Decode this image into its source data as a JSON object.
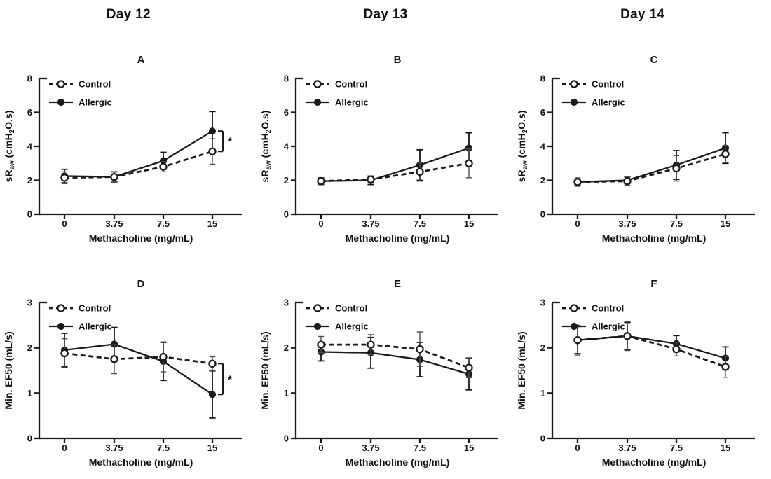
{
  "page": {
    "background": "#ffffff",
    "colors": {
      "foreground": "#111111",
      "axis": "#1a1a1a",
      "error_bar_control": "#4f4f4f",
      "error_bar_allergic": "#161616",
      "marker_open_fill": "#ffffff"
    }
  },
  "headers": [
    {
      "label": "Day 12"
    },
    {
      "label": "Day 13"
    },
    {
      "label": "Day 14"
    }
  ],
  "chart_data": [
    {
      "id": "A",
      "type": "line",
      "day": "Day 12",
      "title": "A",
      "xlabel": "Methacholine (mg/mL)",
      "ylabel": "sRaw (cmH2O.s)",
      "ylabel_rich": [
        {
          "text": "sR"
        },
        {
          "text": "aw",
          "sub": true
        },
        {
          "text": " (cmH"
        },
        {
          "text": "2",
          "sub": true
        },
        {
          "text": "O.s)"
        }
      ],
      "ylim": [
        0,
        8
      ],
      "yticks": [
        0,
        2,
        4,
        6,
        8
      ],
      "categories": [
        "0",
        "3.75",
        "7.5",
        "15"
      ],
      "x_values": [
        0,
        3.75,
        7.5,
        15
      ],
      "grid": false,
      "legend_position": "top-left",
      "series": [
        {
          "name": "Control",
          "marker": "open-circle",
          "line_style": "dashed",
          "values": [
            2.15,
            2.2,
            2.8,
            3.7
          ],
          "errors": [
            0.35,
            0.3,
            0.3,
            0.75
          ]
        },
        {
          "name": "Allergic",
          "marker": "filled-circle",
          "line_style": "solid",
          "values": [
            2.25,
            2.2,
            3.15,
            4.9
          ],
          "errors": [
            0.4,
            0.3,
            0.5,
            1.15
          ]
        }
      ],
      "significance": {
        "label": "*",
        "at_category": "15",
        "between_values": [
          4.9,
          3.7
        ]
      }
    },
    {
      "id": "B",
      "type": "line",
      "day": "Day 13",
      "title": "B",
      "xlabel": "Methacholine (mg/mL)",
      "ylabel": "sRaw (cmH2O.s)",
      "ylabel_rich": [
        {
          "text": "sR"
        },
        {
          "text": "aw",
          "sub": true
        },
        {
          "text": " (cmH"
        },
        {
          "text": "2",
          "sub": true
        },
        {
          "text": "O.s)"
        }
      ],
      "ylim": [
        0,
        8
      ],
      "yticks": [
        0,
        2,
        4,
        6,
        8
      ],
      "categories": [
        "0",
        "3.75",
        "7.5",
        "15"
      ],
      "x_values": [
        0,
        3.75,
        7.5,
        15
      ],
      "grid": false,
      "legend_position": "top-left",
      "series": [
        {
          "name": "Control",
          "marker": "open-circle",
          "line_style": "dashed",
          "values": [
            1.95,
            2.05,
            2.5,
            3.0
          ],
          "errors": [
            0.2,
            0.2,
            0.55,
            0.85
          ]
        },
        {
          "name": "Allergic",
          "marker": "filled-circle",
          "line_style": "solid",
          "values": [
            1.95,
            2.0,
            2.9,
            3.9
          ],
          "errors": [
            0.2,
            0.25,
            0.9,
            0.9
          ]
        }
      ],
      "significance": null
    },
    {
      "id": "C",
      "type": "line",
      "day": "Day 14",
      "title": "C",
      "xlabel": "Methacholine (mg/mL)",
      "ylabel": "sRaw (cmH2O.s)",
      "ylabel_rich": [
        {
          "text": "sR"
        },
        {
          "text": "aw",
          "sub": true
        },
        {
          "text": " (cmH"
        },
        {
          "text": "2",
          "sub": true
        },
        {
          "text": "O.s)"
        }
      ],
      "ylim": [
        0,
        8
      ],
      "yticks": [
        0,
        2,
        4,
        6,
        8
      ],
      "categories": [
        "0",
        "3.75",
        "7.5",
        "15"
      ],
      "x_values": [
        0,
        3.75,
        7.5,
        15
      ],
      "grid": false,
      "legend_position": "top-left",
      "series": [
        {
          "name": "Control",
          "marker": "open-circle",
          "line_style": "dashed",
          "values": [
            1.9,
            1.95,
            2.7,
            3.55
          ],
          "errors": [
            0.25,
            0.25,
            0.75,
            0.5
          ]
        },
        {
          "name": "Allergic",
          "marker": "filled-circle",
          "line_style": "solid",
          "values": [
            1.9,
            2.0,
            2.9,
            3.9
          ],
          "errors": [
            0.15,
            0.2,
            0.85,
            0.9
          ]
        }
      ],
      "significance": null
    },
    {
      "id": "D",
      "type": "line",
      "day": "Day 12",
      "title": "D",
      "xlabel": "Methacholine (mg/mL)",
      "ylabel": "Min. EF50 (mL/s)",
      "ylabel_rich": null,
      "ylim": [
        0,
        3
      ],
      "yticks": [
        0,
        1,
        2,
        3
      ],
      "categories": [
        "0",
        "3.75",
        "7.5",
        "15"
      ],
      "x_values": [
        0,
        3.75,
        7.5,
        15
      ],
      "grid": false,
      "legend_position": "top-left",
      "series": [
        {
          "name": "Control",
          "marker": "open-circle",
          "line_style": "dashed",
          "values": [
            1.88,
            1.75,
            1.8,
            1.65
          ],
          "errors": [
            0.32,
            0.32,
            0.33,
            0.15
          ]
        },
        {
          "name": "Allergic",
          "marker": "filled-circle",
          "line_style": "solid",
          "values": [
            1.95,
            2.08,
            1.7,
            0.97
          ],
          "errors": [
            0.37,
            0.37,
            0.42,
            0.52
          ]
        }
      ],
      "significance": {
        "label": "*",
        "at_category": "15",
        "between_values": [
          1.65,
          0.97
        ]
      }
    },
    {
      "id": "E",
      "type": "line",
      "day": "Day 13",
      "title": "E",
      "xlabel": "Methacholine (mg/mL)",
      "ylabel": "Min. EF50 (mL/s)",
      "ylabel_rich": null,
      "ylim": [
        0,
        3
      ],
      "yticks": [
        0,
        1,
        2,
        3
      ],
      "categories": [
        "0",
        "3.75",
        "7.5",
        "15"
      ],
      "x_values": [
        0,
        3.75,
        7.5,
        15
      ],
      "grid": false,
      "legend_position": "top-left",
      "series": [
        {
          "name": "Control",
          "marker": "open-circle",
          "line_style": "dashed",
          "values": [
            2.07,
            2.07,
            1.97,
            1.56
          ],
          "errors": [
            0.18,
            0.22,
            0.38,
            0.22
          ]
        },
        {
          "name": "Allergic",
          "marker": "filled-circle",
          "line_style": "solid",
          "values": [
            1.91,
            1.89,
            1.74,
            1.42
          ],
          "errors": [
            0.2,
            0.34,
            0.38,
            0.35
          ]
        }
      ],
      "significance": null
    },
    {
      "id": "F",
      "type": "line",
      "day": "Day 14",
      "title": "F",
      "xlabel": "Methacholine (mg/mL)",
      "ylabel": "Min. EF50 (mL/s)",
      "ylabel_rich": null,
      "ylim": [
        0,
        3
      ],
      "yticks": [
        0,
        1,
        2,
        3
      ],
      "categories": [
        "0",
        "3.75",
        "7.5",
        "15"
      ],
      "x_values": [
        0,
        3.75,
        7.5,
        15
      ],
      "grid": false,
      "legend_position": "top-left",
      "series": [
        {
          "name": "Control",
          "marker": "open-circle",
          "line_style": "dashed",
          "values": [
            2.17,
            2.26,
            1.97,
            1.58
          ],
          "errors": [
            0.33,
            0.32,
            0.15,
            0.23
          ]
        },
        {
          "name": "Allergic",
          "marker": "filled-circle",
          "line_style": "solid",
          "values": [
            2.17,
            2.26,
            2.09,
            1.77
          ],
          "errors": [
            0.3,
            0.3,
            0.18,
            0.25
          ]
        }
      ],
      "significance": null
    }
  ]
}
